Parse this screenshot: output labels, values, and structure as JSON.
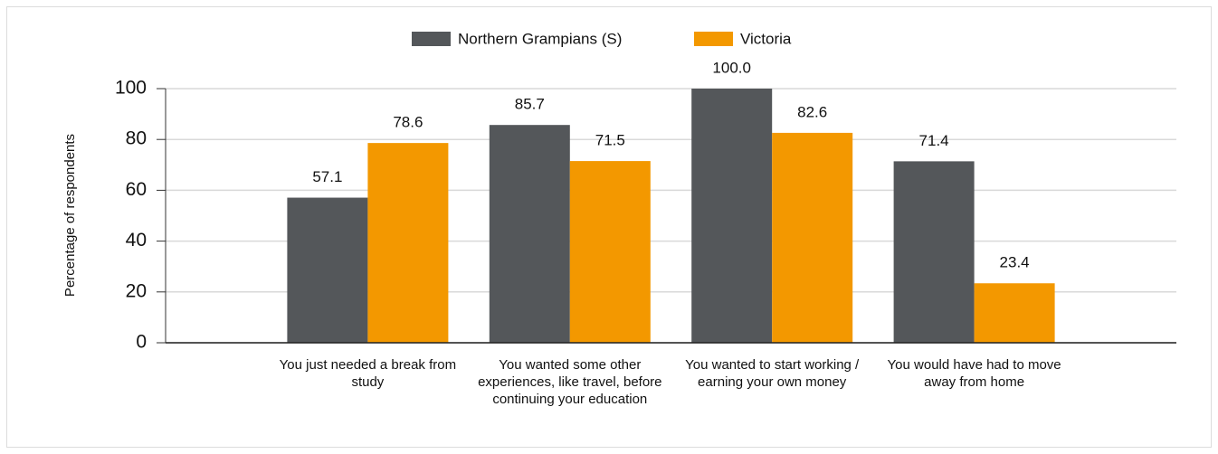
{
  "chart_data": {
    "type": "bar",
    "y_label": "Percentage of respondents",
    "categories": [
      "You just needed a break from study",
      "You wanted some other experiences, like travel, before continuing your education",
      "You wanted to start working / earning your own money",
      "You would have had to move away from home"
    ],
    "series": [
      {
        "name": "Northern Grampians (S)",
        "color": "#54575a",
        "values": [
          57.1,
          85.7,
          100,
          71.4
        ],
        "value_labels": [
          "57.1",
          "85.7",
          "100.0",
          "71.4"
        ]
      },
      {
        "name": "Victoria",
        "color": "#f39800",
        "values": [
          78.6,
          71.5,
          82.6,
          23.4
        ],
        "value_labels": [
          "78.6",
          "71.5",
          "82.6",
          "23.4"
        ]
      }
    ],
    "ylim": [
      0,
      100
    ],
    "yticks": [
      0,
      20,
      40,
      60,
      80,
      100
    ],
    "grid": true
  }
}
